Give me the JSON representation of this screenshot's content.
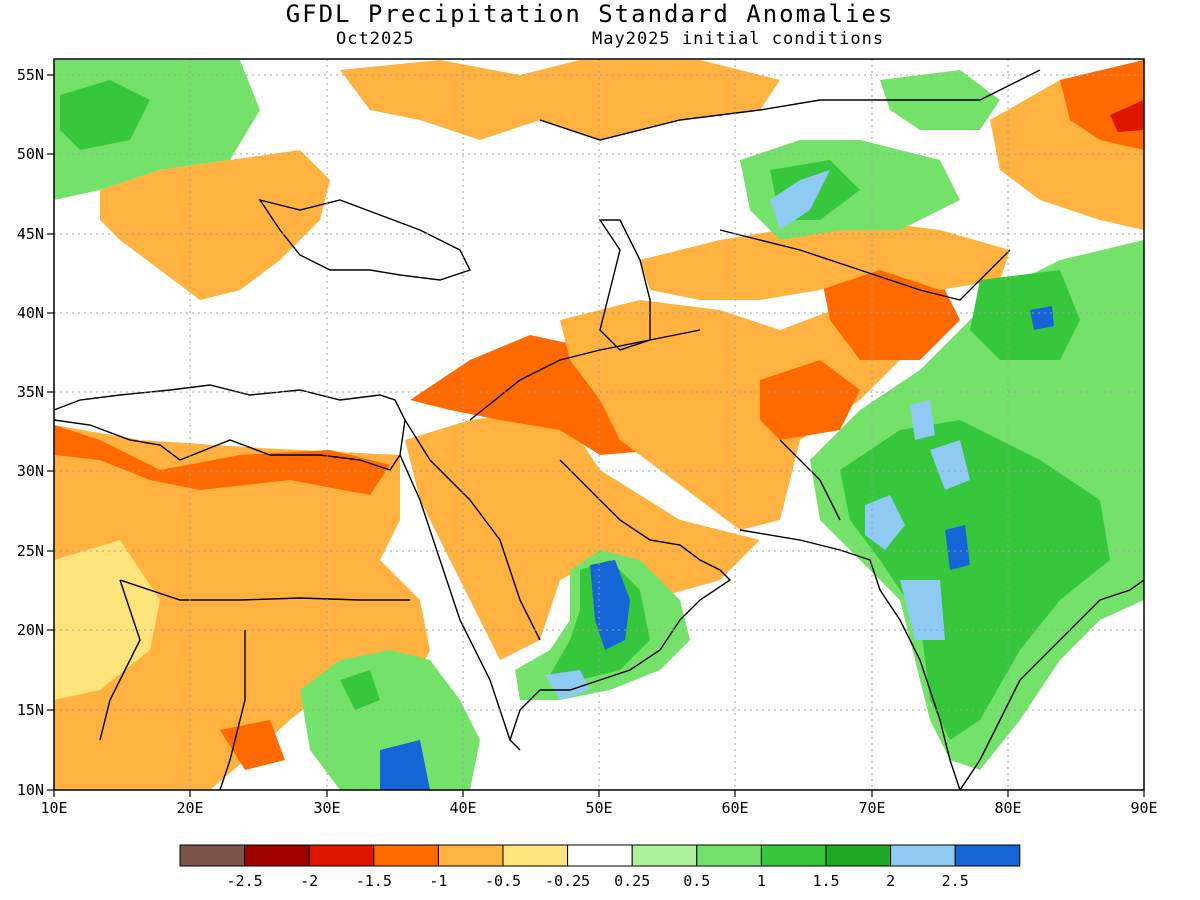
{
  "header": {
    "title": "GFDL Precipitation Standard Anomalies",
    "valid_month": "Oct2025",
    "init": "May2025 initial conditions"
  },
  "axes": {
    "lon_ticks": [
      "10E",
      "20E",
      "30E",
      "40E",
      "50E",
      "60E",
      "70E",
      "80E",
      "90E"
    ],
    "lat_ticks": [
      "10N",
      "15N",
      "20N",
      "25N",
      "30N",
      "35N",
      "40N",
      "45N",
      "50N",
      "55N"
    ],
    "lon_range": [
      10,
      90
    ],
    "lat_range": [
      10,
      56
    ]
  },
  "colorbar": {
    "colors": [
      "#7a5448",
      "#a00000",
      "#e01500",
      "#ff6a00",
      "#ffb23f",
      "#ffe37b",
      "#ffffff",
      "#aef29c",
      "#74e26a",
      "#37c73d",
      "#1fa824",
      "#8ecaf2",
      "#1565d6"
    ],
    "labels": [
      "-2.5",
      "-2",
      "-1.5",
      "-1",
      "-0.5",
      "-0.25",
      "0.25",
      "0.5",
      "1",
      "1.5",
      "2",
      "2.5"
    ]
  }
}
